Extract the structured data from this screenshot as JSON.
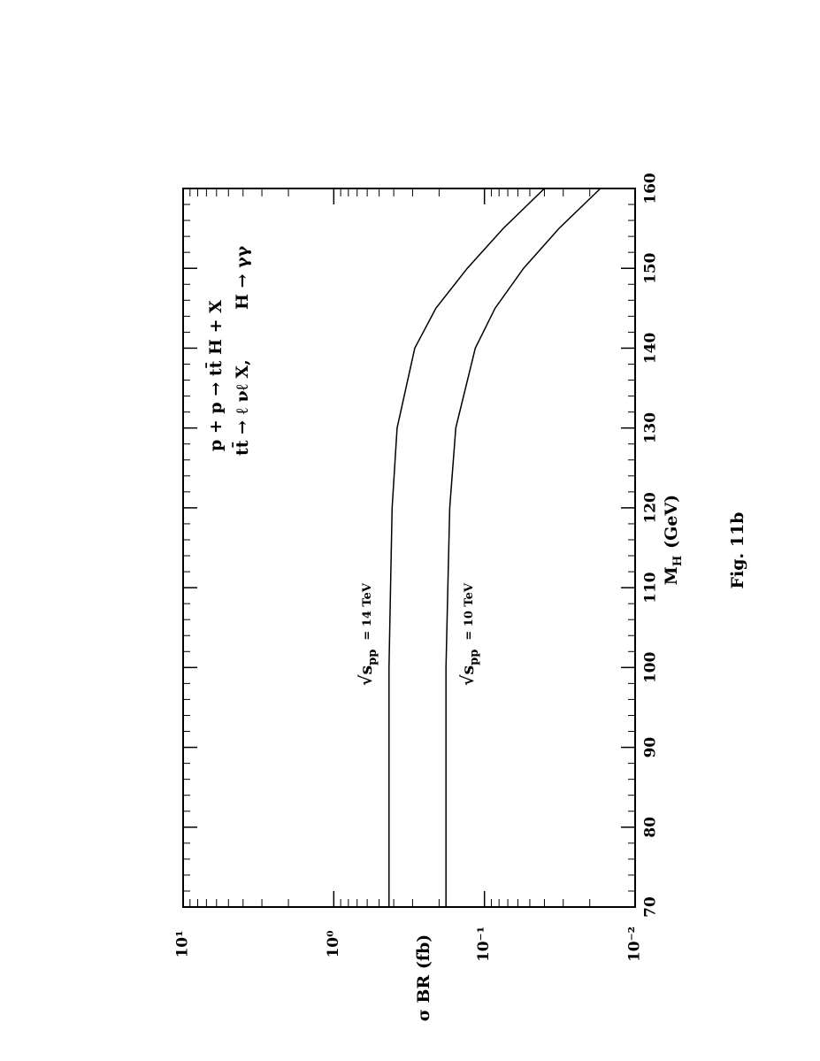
{
  "chart_data": {
    "type": "line",
    "x_label": {
      "symbol": "M",
      "subscript": "H",
      "unit": "(GeV)"
    },
    "y_label": "σ BR (fb)",
    "caption": "Fig. 11b",
    "annotations": [
      "p + p → tt̄ H + X",
      "tt̄ → ℓ νℓ X,",
      "H → γγ"
    ],
    "log_y": true,
    "color": "#000000",
    "x": [
      70,
      80,
      90,
      100,
      110,
      120,
      130,
      140,
      145,
      150,
      155,
      160
    ],
    "series": [
      {
        "name": {
          "root": "√s",
          "subscript": "pp",
          "rest": "= 14 TeV"
        },
        "color": "#000000",
        "values": [
          0.43,
          0.43,
          0.43,
          0.43,
          0.42,
          0.41,
          0.38,
          0.29,
          0.21,
          0.13,
          0.075,
          0.04
        ]
      },
      {
        "name": {
          "root": "√s",
          "subscript": "pp",
          "rest": "= 10 TeV"
        },
        "color": "#000000",
        "values": [
          0.18,
          0.18,
          0.18,
          0.18,
          0.175,
          0.17,
          0.155,
          0.115,
          0.085,
          0.055,
          0.032,
          0.017
        ]
      }
    ],
    "xlim": [
      70,
      160
    ],
    "xticks": [
      70,
      80,
      90,
      100,
      110,
      120,
      130,
      140,
      150,
      160
    ],
    "ylim": [
      0.01,
      10
    ],
    "yticks": [
      {
        "value": 0.01,
        "label": "10⁻²"
      },
      {
        "value": 0.1,
        "label": "10⁻¹"
      },
      {
        "value": 1,
        "label": "10⁰"
      },
      {
        "value": 10,
        "label": "10¹"
      }
    ]
  }
}
